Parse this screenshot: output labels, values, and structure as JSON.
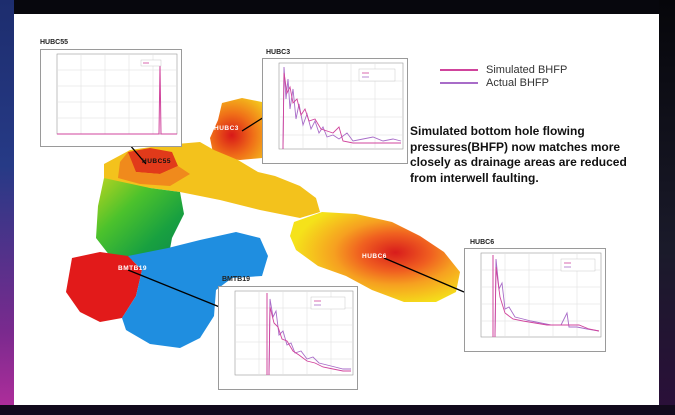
{
  "legend": {
    "items": [
      {
        "label": "Simulated BHFP",
        "color": "#d0449c"
      },
      {
        "label": "Actual BHFP",
        "color": "#a86cc8"
      }
    ]
  },
  "caption": "Simulated bottom hole flowing pressures(BHFP) now matches more closely as drainage areas are reduced from interwell faulting.",
  "wells": [
    {
      "name": "HUBC55"
    },
    {
      "name": "HUBC3"
    },
    {
      "name": "BMTB19"
    },
    {
      "name": "HUBC6"
    }
  ],
  "map_labels": {
    "hubc3": "HUBC3",
    "hubc55": "HUBC55",
    "bmtb19": "BMTB19",
    "hubc6": "HUBC6"
  },
  "colors": {
    "simulated": "#d0449c",
    "actual": "#a86cc8"
  }
}
